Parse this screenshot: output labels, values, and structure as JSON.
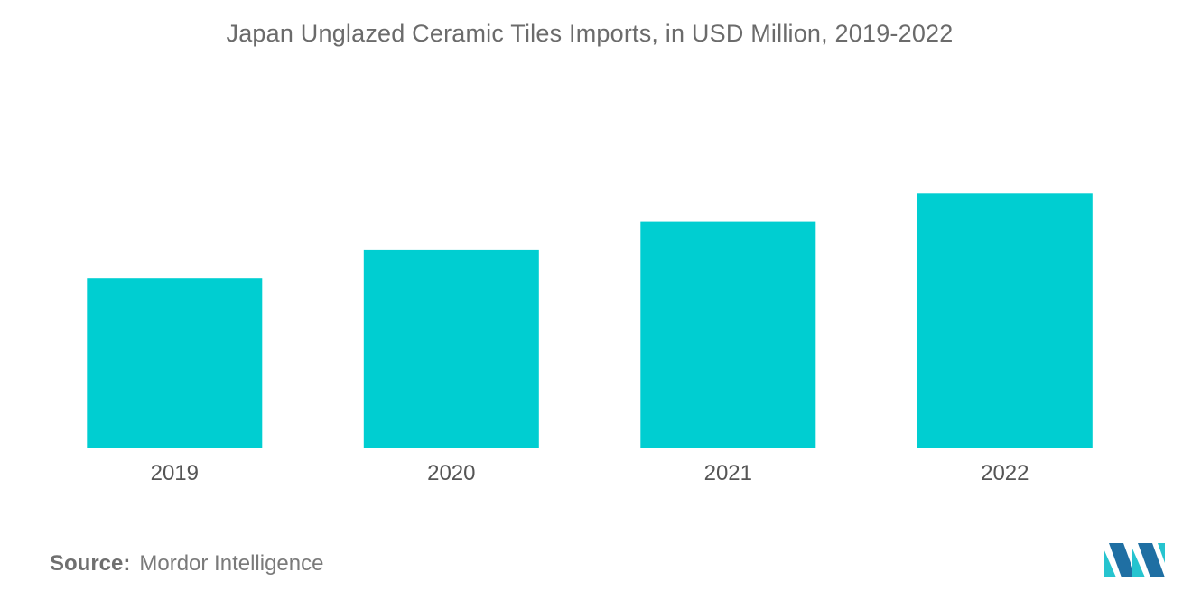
{
  "chart_data": {
    "type": "bar",
    "title": "Japan Unglazed Ceramic Tiles Imports, in USD Million, 2019-2022",
    "categories": [
      "2019",
      "2020",
      "2021",
      "2022"
    ],
    "values": [
      60,
      70,
      80,
      90
    ],
    "xlabel": "",
    "ylabel": "",
    "ylim": [
      0,
      100
    ],
    "grid": false,
    "legend": "none",
    "bar_color": "#00ced1"
  },
  "source": {
    "label": "Source:",
    "text": "Mordor Intelligence"
  },
  "logo": {
    "icon": "mordor-intelligence-logo-icon",
    "color_dark": "#1f6fa3",
    "color_light": "#26c4cf"
  }
}
